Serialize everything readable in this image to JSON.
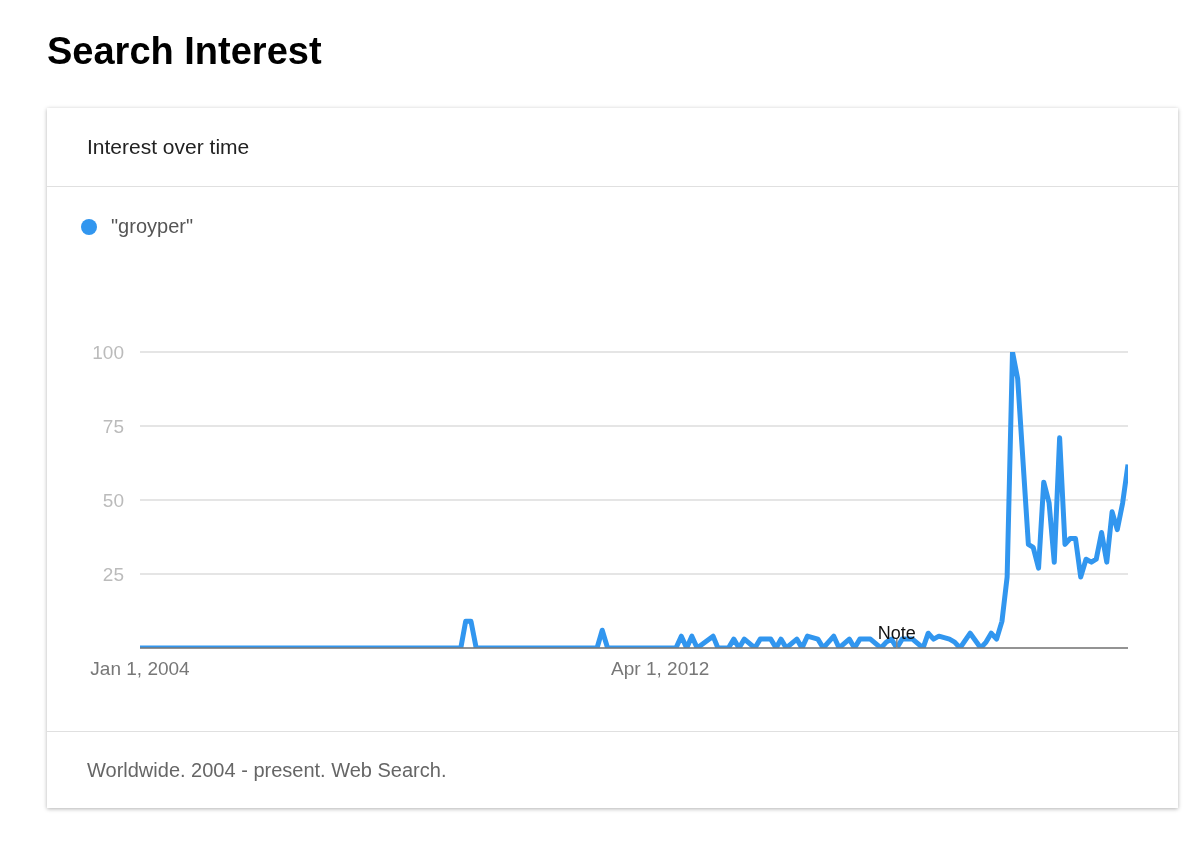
{
  "chart_data": {
    "type": "line",
    "title": "Search Interest",
    "subtitle": "Interest over time",
    "series": [
      {
        "name": "\"groyper\"",
        "color": "#3196ef",
        "x": [
          "2004-01",
          "2009-02",
          "2009-03",
          "2009-04",
          "2009-05",
          "2011-04",
          "2011-05",
          "2011-06",
          "2012-07",
          "2012-08",
          "2012-09",
          "2012-10",
          "2012-11",
          "2013-02",
          "2013-03",
          "2013-05",
          "2013-06",
          "2013-07",
          "2013-08",
          "2013-10",
          "2013-11",
          "2014-01",
          "2014-02",
          "2014-03",
          "2014-04",
          "2014-06",
          "2014-07",
          "2014-08",
          "2014-10",
          "2014-11",
          "2015-01",
          "2015-02",
          "2015-04",
          "2015-05",
          "2015-06",
          "2015-08",
          "2015-10",
          "2015-11",
          "2015-12",
          "2016-01",
          "2016-02",
          "2016-04",
          "2016-06",
          "2016-07",
          "2016-08",
          "2016-09",
          "2016-11",
          "2016-12",
          "2017-01",
          "2017-03",
          "2017-05",
          "2017-06",
          "2017-07",
          "2017-08",
          "2017-09",
          "2017-10",
          "2017-11",
          "2017-12",
          "2018-02",
          "2018-03",
          "2018-04",
          "2018-05",
          "2018-06",
          "2018-07",
          "2018-08",
          "2018-09",
          "2018-10",
          "2018-11",
          "2018-12",
          "2019-01",
          "2019-02",
          "2019-03",
          "2019-04",
          "2019-05",
          "2019-06",
          "2019-07",
          "2019-08",
          "2019-09"
        ],
        "values": [
          0,
          0,
          9,
          9,
          0,
          0,
          6,
          0,
          0,
          4,
          0,
          4,
          0,
          4,
          0,
          0,
          3,
          0,
          3,
          0,
          3,
          3,
          0,
          3,
          0,
          3,
          0,
          4,
          3,
          0,
          4,
          0,
          3,
          0,
          3,
          3,
          0,
          2,
          3,
          0,
          3,
          3,
          0,
          5,
          3,
          4,
          3,
          2,
          0,
          5,
          0,
          2,
          5,
          3,
          9,
          24,
          100,
          91,
          35,
          34,
          27,
          56,
          49,
          29,
          71,
          35,
          37,
          37,
          24,
          30,
          29,
          30,
          39,
          29,
          46,
          40,
          49,
          62
        ]
      }
    ],
    "xlim": [
      "2004-01",
      "2019-09"
    ],
    "xticks": [
      {
        "value": "2004-01-01",
        "label": "Jan 1, 2004"
      },
      {
        "value": "2012-04-01",
        "label": "Apr 1, 2012"
      }
    ],
    "ylim": [
      0,
      100
    ],
    "yticks": [
      {
        "value": 0,
        "label": null
      },
      25,
      50,
      75,
      100
    ],
    "grid": "y",
    "legend": "top left",
    "marker": "none",
    "line_style": "solid",
    "annotations": [
      {
        "text": "Note",
        "x": "2016-01",
        "y": 0
      },
      "Worldwide. 2004 - present. Web Search."
    ]
  }
}
